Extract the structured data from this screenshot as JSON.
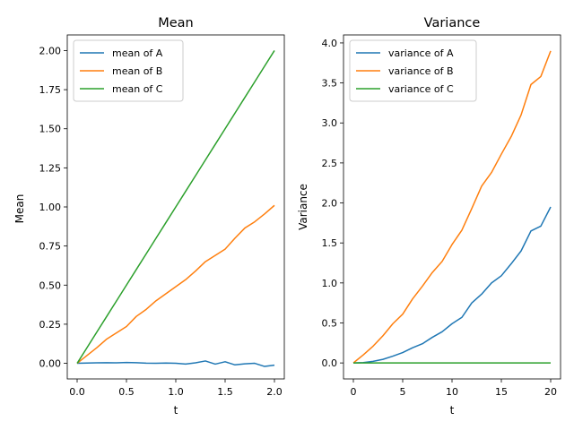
{
  "chart_data": [
    {
      "type": "line",
      "title": "Mean",
      "xlabel": "t",
      "ylabel": "Mean",
      "xlim": [
        -0.1,
        2.1
      ],
      "ylim": [
        -0.1,
        2.1
      ],
      "x_ticks": [
        0.0,
        0.5,
        1.0,
        1.5,
        2.0
      ],
      "x_tick_labels": [
        "0.0",
        "0.5",
        "1.0",
        "1.5",
        "2.0"
      ],
      "y_ticks": [
        0.0,
        0.25,
        0.5,
        0.75,
        1.0,
        1.25,
        1.5,
        1.75,
        2.0
      ],
      "y_tick_labels": [
        "0.00",
        "0.25",
        "0.50",
        "0.75",
        "1.00",
        "1.25",
        "1.50",
        "1.75",
        "2.00"
      ],
      "grid": false,
      "legend_position": "top-left",
      "x": [
        0.0,
        0.1,
        0.2,
        0.3,
        0.4,
        0.5,
        0.6,
        0.7,
        0.8,
        0.9,
        1.0,
        1.1,
        1.2,
        1.3,
        1.4,
        1.5,
        1.6,
        1.7,
        1.8,
        1.9,
        2.0
      ],
      "series": [
        {
          "name": "mean of A",
          "color": "#1f77b4",
          "values": [
            0.0,
            0.002,
            0.003,
            0.004,
            0.003,
            0.005,
            0.004,
            0.001,
            0.0,
            0.002,
            0.0,
            -0.005,
            0.003,
            0.015,
            -0.005,
            0.01,
            -0.01,
            -0.003,
            0.0,
            -0.02,
            -0.012
          ]
        },
        {
          "name": "mean of B",
          "color": "#ff7f0e",
          "values": [
            0.0,
            0.05,
            0.1,
            0.155,
            0.195,
            0.235,
            0.3,
            0.345,
            0.4,
            0.445,
            0.49,
            0.535,
            0.59,
            0.65,
            0.69,
            0.73,
            0.8,
            0.865,
            0.905,
            0.955,
            1.01
          ]
        },
        {
          "name": "mean of C",
          "color": "#2ca02c",
          "values": [
            0.0,
            0.1,
            0.2,
            0.3,
            0.4,
            0.5,
            0.6,
            0.7,
            0.8,
            0.9,
            1.0,
            1.1,
            1.2,
            1.3,
            1.4,
            1.5,
            1.6,
            1.7,
            1.8,
            1.9,
            2.0
          ]
        }
      ]
    },
    {
      "type": "line",
      "title": "Variance",
      "xlabel": "t",
      "ylabel": "Variance",
      "xlim": [
        -1,
        21
      ],
      "ylim": [
        -0.2,
        4.1
      ],
      "x_ticks": [
        0,
        5,
        10,
        15,
        20
      ],
      "x_tick_labels": [
        "0",
        "5",
        "10",
        "15",
        "20"
      ],
      "y_ticks": [
        0.0,
        0.5,
        1.0,
        1.5,
        2.0,
        2.5,
        3.0,
        3.5,
        4.0
      ],
      "y_tick_labels": [
        "0.0",
        "0.5",
        "1.0",
        "1.5",
        "2.0",
        "2.5",
        "3.0",
        "3.5",
        "4.0"
      ],
      "grid": false,
      "legend_position": "top-left",
      "x": [
        0,
        1,
        2,
        3,
        4,
        5,
        6,
        7,
        8,
        9,
        10,
        11,
        12,
        13,
        14,
        15,
        16,
        17,
        18,
        19,
        20
      ],
      "series": [
        {
          "name": "variance of A",
          "color": "#1f77b4",
          "values": [
            0.0,
            0.005,
            0.02,
            0.045,
            0.085,
            0.13,
            0.19,
            0.24,
            0.32,
            0.39,
            0.49,
            0.57,
            0.75,
            0.86,
            1.0,
            1.09,
            1.24,
            1.4,
            1.65,
            1.71,
            1.95
          ]
        },
        {
          "name": "variance of B",
          "color": "#ff7f0e",
          "values": [
            0.0,
            0.1,
            0.21,
            0.34,
            0.49,
            0.61,
            0.8,
            0.96,
            1.13,
            1.27,
            1.48,
            1.66,
            1.93,
            2.21,
            2.38,
            2.61,
            2.83,
            3.1,
            3.48,
            3.58,
            3.9
          ]
        },
        {
          "name": "variance of C",
          "color": "#2ca02c",
          "values": [
            0.0,
            0.0,
            0.0,
            0.0,
            0.0,
            0.0,
            0.0,
            0.0,
            0.0,
            0.0,
            0.0,
            0.0,
            0.0,
            0.0,
            0.0,
            0.0,
            0.0,
            0.0,
            0.0,
            0.0,
            0.0
          ]
        }
      ]
    }
  ]
}
